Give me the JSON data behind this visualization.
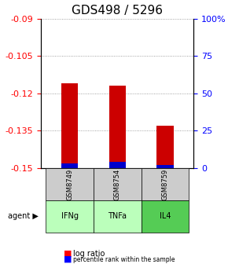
{
  "title": "GDS498 / 5296",
  "samples": [
    "GSM8749",
    "GSM8754",
    "GSM8759"
  ],
  "agents": [
    "IFNg",
    "TNFa",
    "IL4"
  ],
  "log_ratios": [
    -0.116,
    -0.117,
    -0.133
  ],
  "percentile_ranks": [
    0.03,
    0.04,
    0.02
  ],
  "ylim_left": [
    -0.15,
    -0.09
  ],
  "ylim_right": [
    0,
    100
  ],
  "yticks_left": [
    -0.15,
    -0.135,
    -0.12,
    -0.105,
    -0.09
  ],
  "yticks_right": [
    0,
    25,
    50,
    75,
    100
  ],
  "ytick_labels_left": [
    "-0.15",
    "-0.135",
    "-0.12",
    "-0.105",
    "-0.09"
  ],
  "ytick_labels_right": [
    "0",
    "25",
    "50",
    "75",
    "100%"
  ],
  "bar_bottom": -0.15,
  "bar_color": "#cc0000",
  "percentile_color": "#0000cc",
  "agent_colors": [
    "#aaffaa",
    "#aaffaa",
    "#55cc55"
  ],
  "sample_bg_color": "#cccccc",
  "agent_bg_colors": [
    "#bbffbb",
    "#bbffbb",
    "#66dd66"
  ],
  "grid_color": "#888888",
  "title_fontsize": 11,
  "tick_fontsize": 8,
  "bar_width": 0.35
}
